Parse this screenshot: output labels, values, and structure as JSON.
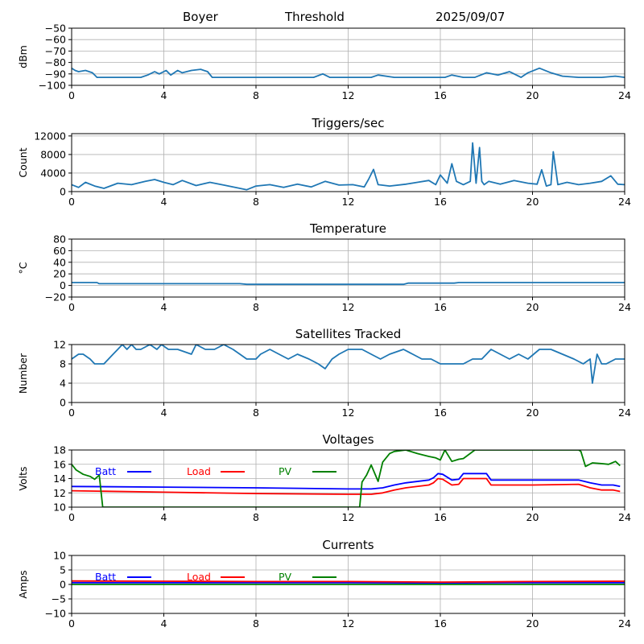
{
  "header": {
    "station": "Boyer",
    "mode": "Threshold",
    "date": "2025/09/07"
  },
  "x_ticks": [
    "0",
    "4",
    "8",
    "12",
    "16",
    "20",
    "24"
  ],
  "colors": {
    "line": "#1f77b4",
    "batt": "#0000ff",
    "load": "#ff0000",
    "pv": "#008000",
    "grid": "#b0b0b0"
  },
  "chart_data": [
    {
      "id": "signal",
      "type": "line",
      "title": "",
      "ylabel": "dBm",
      "xlim": [
        0,
        24
      ],
      "ylim": [
        -100,
        -50
      ],
      "yticks": [
        -100,
        -90,
        -80,
        -70,
        -60,
        -50
      ],
      "ytick_labels": [
        "−100",
        "−90",
        "−80",
        "−70",
        "−60",
        "−50"
      ],
      "grid": true,
      "series": [
        {
          "color": "#1f77b4",
          "x": [
            0,
            0.15,
            0.3,
            0.6,
            0.9,
            1.1,
            1.5,
            2,
            3,
            3.3,
            3.6,
            3.8,
            4.1,
            4.3,
            4.6,
            4.8,
            5.2,
            5.6,
            5.9,
            6.1,
            6.5,
            8,
            10,
            10.5,
            10.9,
            11.2,
            12,
            13,
            13.3,
            14,
            14.8,
            15.5,
            16.2,
            16.5,
            17,
            17.5,
            18,
            18.5,
            19,
            19.5,
            19.8,
            20.3,
            20.8,
            21.3,
            22,
            23,
            23.6,
            24
          ],
          "y": [
            -85,
            -87,
            -88,
            -87,
            -89,
            -93,
            -93,
            -93,
            -93,
            -91,
            -88,
            -90,
            -87,
            -91,
            -87,
            -89,
            -87,
            -86,
            -88,
            -93,
            -93,
            -93,
            -93,
            -93,
            -90,
            -93,
            -93,
            -93,
            -91,
            -93,
            -93,
            -93,
            -93,
            -91,
            -93,
            -93,
            -89,
            -91,
            -88,
            -93,
            -89,
            -85,
            -89,
            -92,
            -93,
            -93,
            -92,
            -93
          ]
        }
      ]
    },
    {
      "id": "triggers",
      "type": "line",
      "title": "Triggers/sec",
      "ylabel": "Count",
      "xlim": [
        0,
        24
      ],
      "ylim": [
        0,
        12500
      ],
      "yticks": [
        0,
        4000,
        8000,
        12000
      ],
      "ytick_labels": [
        "0",
        "4000",
        "8000",
        "12000"
      ],
      "grid": true,
      "series": [
        {
          "color": "#1f77b4",
          "x": [
            0,
            0.3,
            0.6,
            1,
            1.4,
            2,
            2.6,
            3.2,
            3.6,
            4,
            4.4,
            4.8,
            5.4,
            6,
            6.6,
            7.2,
            7.6,
            8,
            8.6,
            9.2,
            9.8,
            10.4,
            11,
            11.6,
            12.2,
            12.7,
            12.9,
            13.1,
            13.3,
            13.8,
            14.5,
            15,
            15.5,
            15.8,
            16,
            16.3,
            16.5,
            16.7,
            17,
            17.3,
            17.4,
            17.55,
            17.7,
            17.8,
            17.9,
            18.1,
            18.6,
            19.2,
            19.8,
            20.2,
            20.4,
            20.6,
            20.8,
            20.9,
            21.1,
            21.5,
            22,
            22.5,
            23,
            23.4,
            23.7,
            24
          ],
          "y": [
            1500,
            900,
            2000,
            1200,
            700,
            1800,
            1500,
            2200,
            2600,
            2000,
            1500,
            2400,
            1300,
            2000,
            1400,
            800,
            400,
            1200,
            1500,
            900,
            1600,
            1000,
            2200,
            1400,
            1500,
            1000,
            2800,
            4800,
            1500,
            1200,
            1600,
            2000,
            2400,
            1500,
            3600,
            1800,
            6000,
            2200,
            1500,
            2200,
            10500,
            1800,
            9500,
            2200,
            1500,
            2200,
            1600,
            2400,
            1800,
            1600,
            4700,
            1200,
            1500,
            8600,
            1500,
            2000,
            1500,
            1800,
            2200,
            3400,
            1600,
            1500
          ]
        }
      ]
    },
    {
      "id": "temperature",
      "type": "line",
      "title": "Temperature",
      "ylabel": "°C",
      "xlim": [
        0,
        24
      ],
      "ylim": [
        -20,
        80
      ],
      "yticks": [
        -20,
        0,
        20,
        40,
        60,
        80
      ],
      "ytick_labels": [
        "−20",
        "0",
        "20",
        "40",
        "60",
        "80"
      ],
      "grid": true,
      "series": [
        {
          "color": "#1f77b4",
          "x": [
            0,
            1.1,
            1.2,
            7.3,
            7.6,
            14.4,
            14.6,
            16.6,
            16.8,
            24
          ],
          "y": [
            5,
            5,
            3,
            3,
            2,
            2,
            4,
            4,
            5,
            5
          ]
        }
      ]
    },
    {
      "id": "satellites",
      "type": "line",
      "title": "Satellites Tracked",
      "ylabel": "Number",
      "xlim": [
        0,
        24
      ],
      "ylim": [
        0,
        12
      ],
      "yticks": [
        0,
        4,
        8,
        12
      ],
      "ytick_labels": [
        "0",
        "4",
        "8",
        "12"
      ],
      "grid": true,
      "series": [
        {
          "color": "#1f77b4",
          "x": [
            0,
            0.3,
            0.5,
            0.8,
            1,
            1.4,
            1.6,
            1.8,
            2,
            2.2,
            2.4,
            2.6,
            2.8,
            3,
            3.4,
            3.7,
            3.9,
            4.2,
            4.6,
            5.2,
            5.4,
            5.8,
            6.2,
            6.6,
            7,
            7.3,
            7.6,
            8,
            8.2,
            8.6,
            9,
            9.4,
            9.8,
            10.3,
            10.7,
            11,
            11.3,
            11.6,
            12,
            12.6,
            13,
            13.4,
            13.8,
            14.4,
            14.8,
            15.2,
            15.6,
            16,
            16.5,
            17,
            17.4,
            17.8,
            18,
            18.2,
            18.6,
            19,
            19.4,
            19.8,
            20.3,
            20.8,
            21.3,
            21.8,
            22.2,
            22.5,
            22.6,
            22.8,
            23,
            23.2,
            23.6,
            24
          ],
          "y": [
            9,
            10,
            10,
            9,
            8,
            8,
            9,
            10,
            11,
            12,
            11,
            12,
            11,
            11,
            12,
            11,
            12,
            11,
            11,
            10,
            12,
            11,
            11,
            12,
            11,
            10,
            9,
            9,
            10,
            11,
            10,
            9,
            10,
            9,
            8,
            7,
            9,
            10,
            11,
            11,
            10,
            9,
            10,
            11,
            10,
            9,
            9,
            8,
            8,
            8,
            9,
            9,
            10,
            11,
            10,
            9,
            10,
            9,
            11,
            11,
            10,
            9,
            8,
            9,
            4,
            10,
            8,
            8,
            9,
            9
          ]
        }
      ]
    },
    {
      "id": "voltages",
      "type": "line",
      "title": "Voltages",
      "ylabel": "Volts",
      "xlim": [
        0,
        24
      ],
      "ylim": [
        10,
        18
      ],
      "yticks": [
        10,
        12,
        14,
        16,
        18
      ],
      "ytick_labels": [
        "10",
        "12",
        "14",
        "16",
        "18"
      ],
      "grid": true,
      "legend": [
        "Batt",
        "Load",
        "PV"
      ],
      "series": [
        {
          "name": "Batt",
          "color": "#0000ff",
          "x": [
            0,
            4,
            8,
            12,
            13,
            13.5,
            14,
            14.5,
            15.5,
            15.7,
            15.9,
            16.1,
            16.5,
            16.8,
            17,
            17.5,
            18,
            18.2,
            19,
            20,
            22,
            22.5,
            23,
            23.5,
            23.8
          ],
          "y": [
            12.9,
            12.8,
            12.7,
            12.55,
            12.55,
            12.7,
            13.1,
            13.4,
            13.8,
            14.1,
            14.7,
            14.6,
            13.8,
            13.9,
            14.7,
            14.7,
            14.7,
            13.8,
            13.8,
            13.8,
            13.8,
            13.4,
            13.1,
            13.1,
            12.9
          ]
        },
        {
          "name": "Load",
          "color": "#ff0000",
          "x": [
            0,
            4,
            8,
            12,
            13,
            13.5,
            14,
            14.5,
            15.5,
            15.7,
            15.9,
            16.1,
            16.5,
            16.8,
            17,
            17.5,
            18,
            18.2,
            19,
            20,
            22,
            22.5,
            23,
            23.5,
            23.8
          ],
          "y": [
            12.3,
            12.1,
            11.9,
            11.8,
            11.8,
            12.0,
            12.4,
            12.7,
            13.1,
            13.4,
            14.0,
            13.9,
            13.1,
            13.2,
            14.0,
            14.0,
            14.0,
            13.1,
            13.1,
            13.1,
            13.2,
            12.7,
            12.4,
            12.4,
            12.2
          ]
        },
        {
          "name": "PV",
          "color": "#008000",
          "x": [
            0,
            0.2,
            0.5,
            0.8,
            1,
            1.2,
            1.35,
            12.5,
            12.6,
            12.8,
            13,
            13.3,
            13.5,
            13.8,
            14,
            14.5,
            15,
            15.5,
            15.8,
            16,
            16.2,
            16.5,
            16.8,
            17,
            17.5,
            22,
            22.1,
            22.3,
            22.6,
            23,
            23.3,
            23.6,
            23.8
          ],
          "y": [
            16,
            15.2,
            14.6,
            14.3,
            13.9,
            14.5,
            10,
            10,
            13.5,
            14.5,
            15.9,
            13.6,
            16.3,
            17.5,
            17.8,
            18,
            17.5,
            17.1,
            16.9,
            16.6,
            18,
            16.4,
            16.7,
            16.8,
            18,
            18,
            17.8,
            15.7,
            16.2,
            16.1,
            16,
            16.4,
            15.8
          ]
        }
      ]
    },
    {
      "id": "currents",
      "type": "line",
      "title": "Currents",
      "ylabel": "Amps",
      "xlim": [
        0,
        24
      ],
      "ylim": [
        -10,
        10
      ],
      "yticks": [
        -10,
        -5,
        0,
        5,
        10
      ],
      "ytick_labels": [
        "−10",
        "−5",
        "0",
        "5",
        "10"
      ],
      "grid": true,
      "legend": [
        "Batt",
        "Load",
        "PV"
      ],
      "series": [
        {
          "name": "Batt",
          "color": "#0000ff",
          "x": [
            0,
            4,
            8,
            12,
            16,
            20,
            24
          ],
          "y": [
            0.6,
            0.6,
            0.6,
            0.6,
            0.5,
            0.6,
            0.6
          ]
        },
        {
          "name": "Load",
          "color": "#ff0000",
          "x": [
            0,
            4,
            8,
            12,
            16,
            18,
            20,
            24
          ],
          "y": [
            1.2,
            1.1,
            1.0,
            1.0,
            0.8,
            0.9,
            1.0,
            1.1
          ]
        },
        {
          "name": "PV",
          "color": "#008000",
          "x": [
            0,
            4,
            8,
            12,
            16,
            20,
            24
          ],
          "y": [
            0,
            0,
            0,
            0,
            0,
            0,
            0
          ]
        }
      ]
    }
  ]
}
